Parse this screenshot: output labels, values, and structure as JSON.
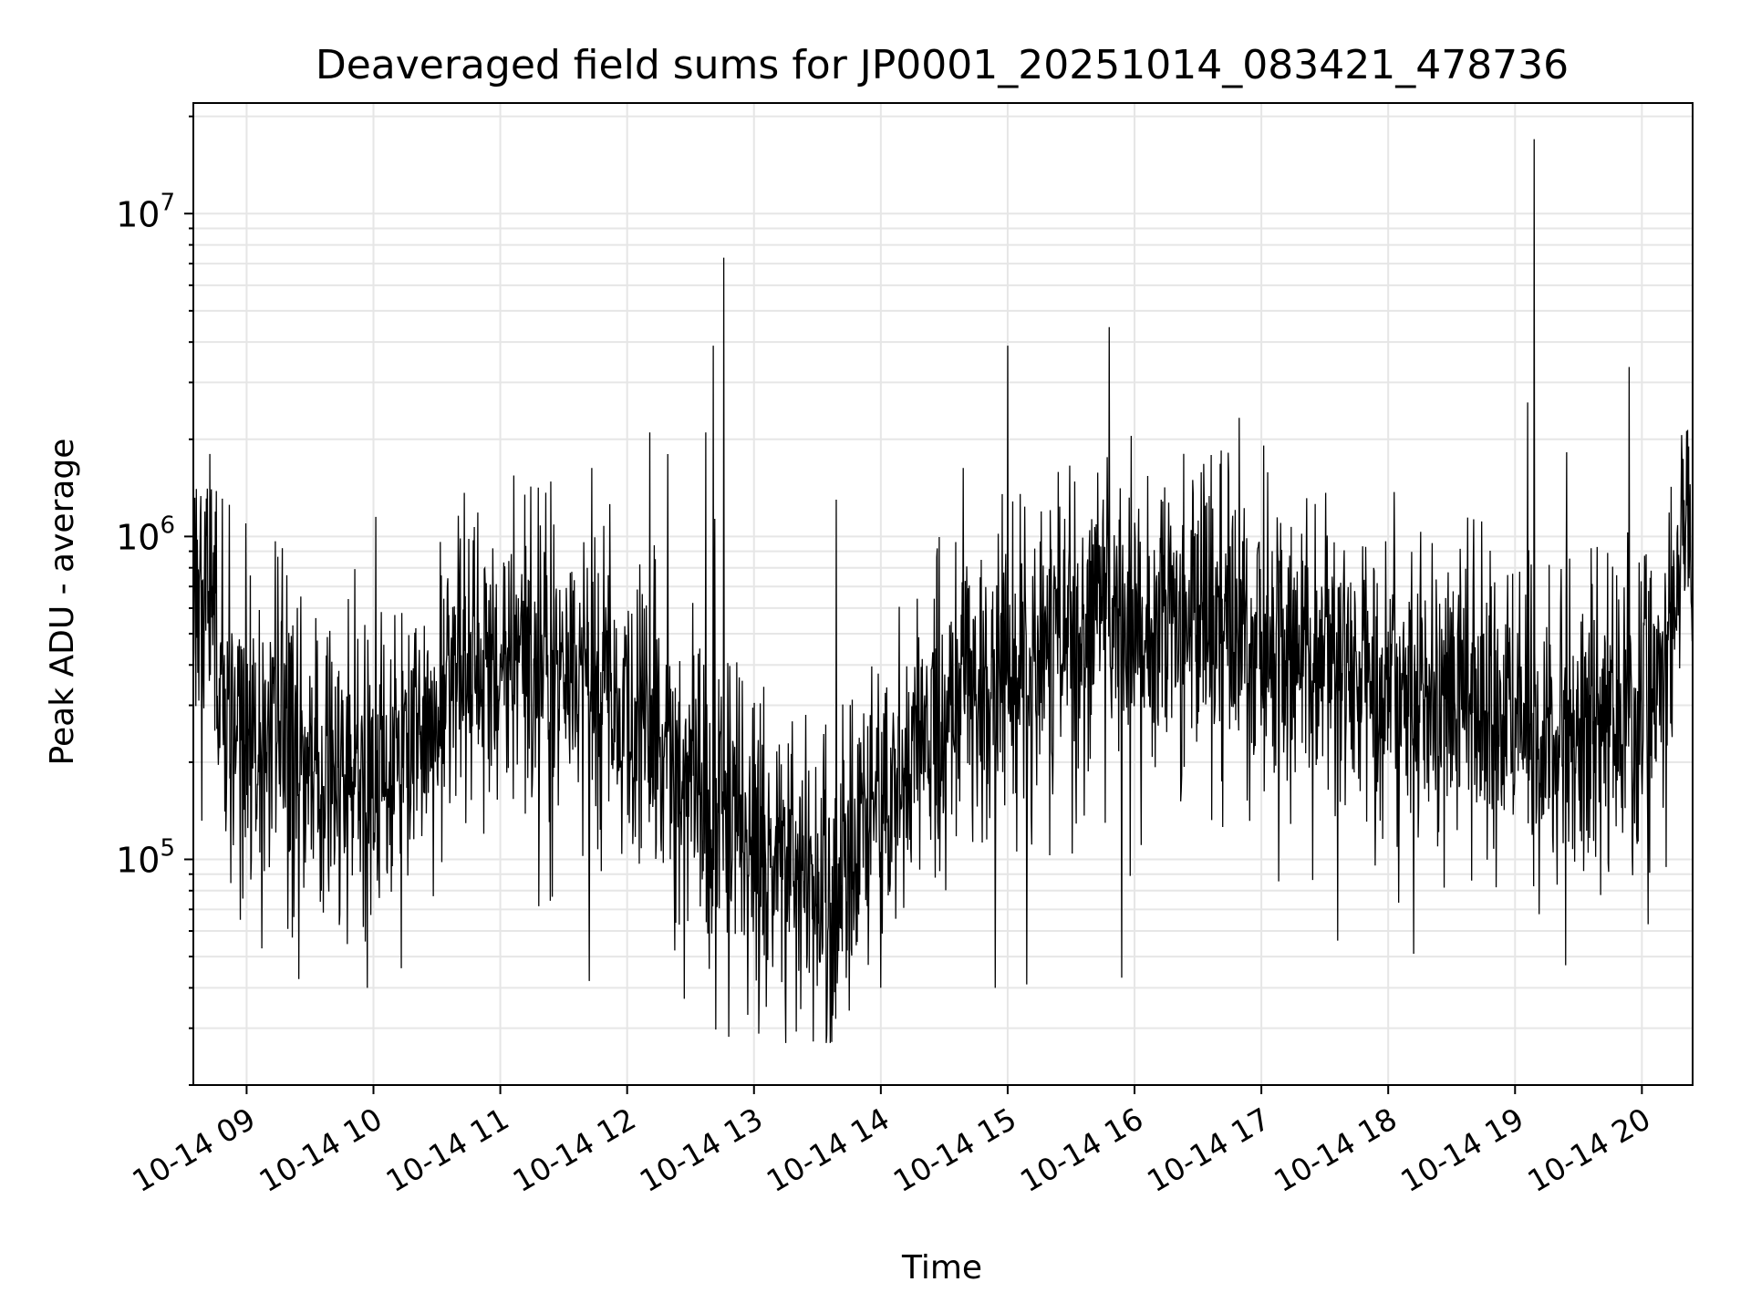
{
  "chart_data": {
    "type": "line",
    "title": "Deaveraged field sums for JP0001_20251014_083421_478736",
    "xlabel": "Time",
    "ylabel": "Peak ADU - average",
    "yscale": "log",
    "ylim": [
      20000,
      22000000
    ],
    "xlim_hours": [
      8.58,
      20.4
    ],
    "grid": true,
    "line_color": "#000000",
    "x_ticks": [
      {
        "hour": 9,
        "label": "10-14 09"
      },
      {
        "hour": 10,
        "label": "10-14 10"
      },
      {
        "hour": 11,
        "label": "10-14 11"
      },
      {
        "hour": 12,
        "label": "10-14 12"
      },
      {
        "hour": 13,
        "label": "10-14 13"
      },
      {
        "hour": 14,
        "label": "10-14 14"
      },
      {
        "hour": 15,
        "label": "10-14 15"
      },
      {
        "hour": 16,
        "label": "10-14 16"
      },
      {
        "hour": 17,
        "label": "10-14 17"
      },
      {
        "hour": 18,
        "label": "10-14 18"
      },
      {
        "hour": 19,
        "label": "10-14 19"
      },
      {
        "hour": 20,
        "label": "10-14 20"
      }
    ],
    "y_ticks": [
      {
        "value": 100000,
        "base": "10",
        "exp": "5"
      },
      {
        "value": 1000000,
        "base": "10",
        "exp": "6"
      },
      {
        "value": 10000000,
        "base": "10",
        "exp": "7"
      }
    ],
    "baseline_profile": [
      [
        8.58,
        650000
      ],
      [
        8.7,
        800000
      ],
      [
        8.75,
        600000
      ],
      [
        8.8,
        320000
      ],
      [
        9.0,
        260000
      ],
      [
        9.3,
        210000
      ],
      [
        9.6,
        200000
      ],
      [
        9.9,
        180000
      ],
      [
        10.1,
        200000
      ],
      [
        10.4,
        260000
      ],
      [
        10.6,
        380000
      ],
      [
        11.0,
        400000
      ],
      [
        11.3,
        360000
      ],
      [
        11.6,
        380000
      ],
      [
        11.9,
        320000
      ],
      [
        12.1,
        240000
      ],
      [
        12.4,
        180000
      ],
      [
        12.7,
        140000
      ],
      [
        13.0,
        110000
      ],
      [
        13.3,
        100000
      ],
      [
        13.6,
        80000
      ],
      [
        13.9,
        130000
      ],
      [
        14.2,
        200000
      ],
      [
        14.5,
        280000
      ],
      [
        14.8,
        340000
      ],
      [
        15.2,
        420000
      ],
      [
        15.6,
        500000
      ],
      [
        16.0,
        560000
      ],
      [
        16.4,
        520000
      ],
      [
        16.8,
        470000
      ],
      [
        17.2,
        430000
      ],
      [
        17.6,
        400000
      ],
      [
        18.0,
        360000
      ],
      [
        18.4,
        320000
      ],
      [
        18.8,
        290000
      ],
      [
        19.2,
        250000
      ],
      [
        19.6,
        240000
      ],
      [
        20.0,
        300000
      ],
      [
        20.2,
        420000
      ],
      [
        20.35,
        1500000
      ],
      [
        20.4,
        600000
      ]
    ],
    "spikes": [
      [
        8.72,
        1400000
      ],
      [
        9.28,
        920000
      ],
      [
        10.02,
        1150000
      ],
      [
        11.4,
        1480000
      ],
      [
        12.18,
        2100000
      ],
      [
        12.32,
        1800000
      ],
      [
        12.62,
        2100000
      ],
      [
        12.68,
        3900000
      ],
      [
        12.76,
        7300000
      ],
      [
        13.65,
        1300000
      ],
      [
        14.65,
        1630000
      ],
      [
        15.0,
        3900000
      ],
      [
        15.8,
        4450000
      ],
      [
        19.15,
        17000000
      ],
      [
        19.1,
        2600000
      ],
      [
        19.9,
        3350000
      ],
      [
        20.37,
        1900000
      ]
    ],
    "dips": [
      [
        8.95,
        65000
      ],
      [
        9.95,
        40000
      ],
      [
        10.22,
        46000
      ],
      [
        11.7,
        42000
      ],
      [
        12.45,
        37000
      ],
      [
        12.95,
        33000
      ],
      [
        13.6,
        27000
      ],
      [
        13.75,
        34000
      ],
      [
        14.0,
        40000
      ],
      [
        14.9,
        40000
      ],
      [
        15.15,
        41000
      ],
      [
        15.9,
        43000
      ],
      [
        17.6,
        56000
      ],
      [
        18.2,
        51000
      ],
      [
        19.4,
        47000
      ]
    ]
  }
}
